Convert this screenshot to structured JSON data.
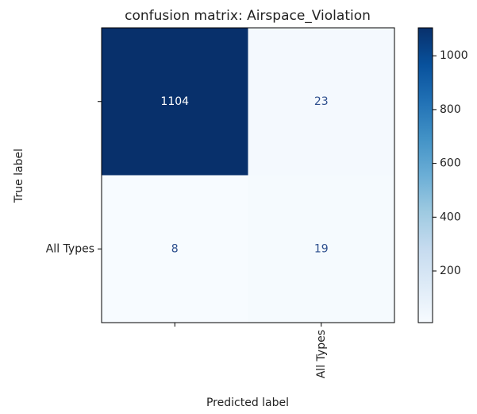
{
  "chart_data": {
    "type": "heatmap",
    "title": "confusion matrix:  Airspace_Violation",
    "xlabel": "Predicted label",
    "ylabel": "True label",
    "x_categories": [
      null,
      "All Types"
    ],
    "y_categories": [
      null,
      "All Types"
    ],
    "values": [
      [
        1104,
        23
      ],
      [
        8,
        19
      ]
    ],
    "colormap": [
      "#f7fbff",
      "#deebf7",
      "#c6dbef",
      "#9ecae1",
      "#6baed6",
      "#4292c6",
      "#2171b5",
      "#08519c",
      "#08306b"
    ],
    "clim": [
      8,
      1104
    ],
    "cticks": [
      200,
      400,
      600,
      800,
      1000
    ]
  }
}
